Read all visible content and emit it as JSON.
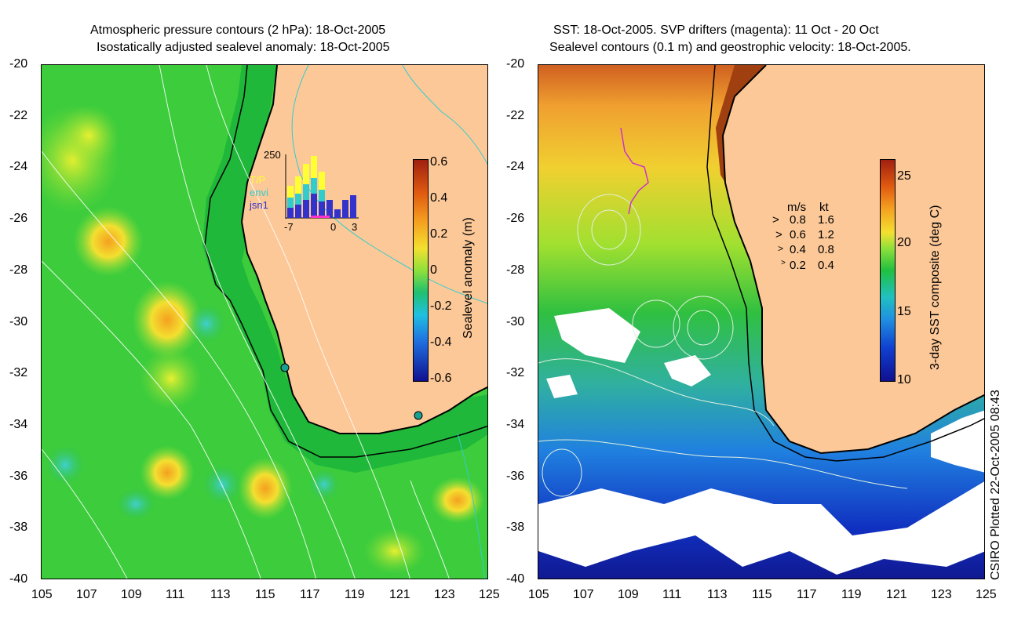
{
  "left_panel": {
    "title_line1": "Atmospheric pressure contours (2 hPa): 18-Oct-2005",
    "title_line2": "Isostatically adjusted sealevel anomaly: 18-Oct-2005",
    "y_ticks": [
      "-20",
      "-22",
      "-24",
      "-26",
      "-28",
      "-30",
      "-32",
      "-34",
      "-36",
      "-38",
      "-40"
    ],
    "x_ticks": [
      "105",
      "107",
      "109",
      "111",
      "113",
      "115",
      "117",
      "119",
      "121",
      "123",
      "125"
    ],
    "colorbar_label": "Sealevel anomaly (m)",
    "colorbar_ticks": [
      "0.6",
      "0.4",
      "0.2",
      "0",
      "-0.2",
      "-0.4",
      "-0.6"
    ],
    "inset": {
      "ymax_label": "250",
      "x_labels": [
        "-7",
        "0",
        "3"
      ],
      "legend": [
        "T/P",
        "envi",
        "jsn1"
      ],
      "colors": {
        "tp": "#ffff33",
        "envi": "#33cccc",
        "jsn1": "#3333cc"
      }
    }
  },
  "right_panel": {
    "title_line1": "SST: 18-Oct-2005. SVP drifters (magenta): 11 Oct - 20 Oct",
    "title_line2": "Sealevel contours (0.1 m) and geostrophic velocity: 18-Oct-2005.",
    "y_ticks": [
      "-20",
      "-22",
      "-24",
      "-26",
      "-28",
      "-30",
      "-32",
      "-34",
      "-36",
      "-38",
      "-40"
    ],
    "x_ticks": [
      "105",
      "107",
      "109",
      "111",
      "113",
      "115",
      "117",
      "119",
      "121",
      "123",
      "125"
    ],
    "colorbar_label": "3-day SST composite (deg C)",
    "colorbar_ticks": [
      "25",
      "20",
      "15",
      "10"
    ],
    "speed_legend": {
      "header_ms": "m/s",
      "header_kt": "kt",
      "rows": [
        {
          "ms": "0.8",
          "kt": "1.6"
        },
        {
          "ms": "0.6",
          "kt": "1.2"
        },
        {
          "ms": "0.4",
          "kt": "0.8"
        },
        {
          "ms": "0.2",
          "kt": "0.4"
        }
      ]
    }
  },
  "credit": "CSIRO Plotted 22-Oct-2005 08:43",
  "colors": {
    "land": "#fcc898",
    "ocean_green": "#33cc33",
    "shelf": "#1fbf3f",
    "coast": "#000000"
  }
}
